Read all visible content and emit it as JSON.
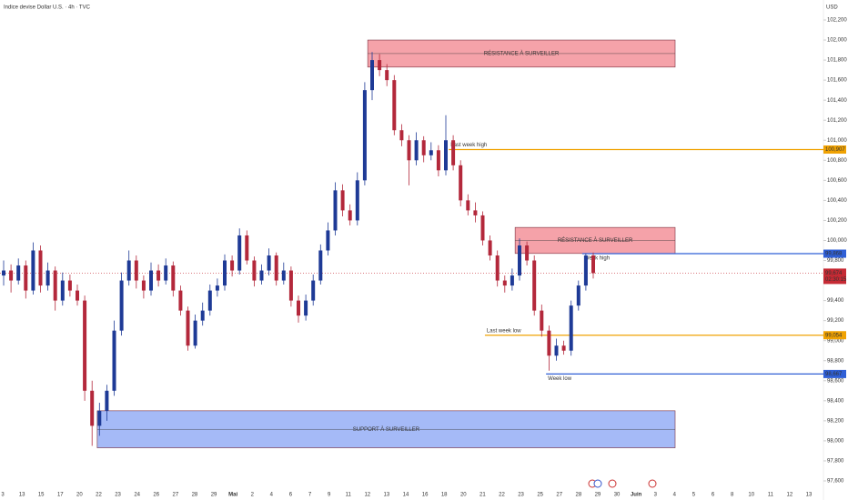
{
  "chart_data": {
    "type": "candlestick",
    "title": "Indice devise Dollar U.S. · 4h · TVC",
    "currency": "USD",
    "up_color": "#1e3a96",
    "down_color": "#b3283b",
    "ylim": [
      97600,
      102200
    ],
    "yticks": [
      {
        "value": 97600,
        "label": "97,600"
      },
      {
        "value": 97800,
        "label": "97,800"
      },
      {
        "value": 98000,
        "label": "98,000"
      },
      {
        "value": 98200,
        "label": "98,200"
      },
      {
        "value": 98400,
        "label": "98,400"
      },
      {
        "value": 98600,
        "label": "98,600"
      },
      {
        "value": 98800,
        "label": "98,800"
      },
      {
        "value": 99000,
        "label": "99,000"
      },
      {
        "value": 99200,
        "label": "99,200"
      },
      {
        "value": 99400,
        "label": "99,400"
      },
      {
        "value": 99600,
        "label": "99,600"
      },
      {
        "value": 99800,
        "label": "99,800"
      },
      {
        "value": 100000,
        "label": "100,000"
      },
      {
        "value": 100200,
        "label": "100,200"
      },
      {
        "value": 100400,
        "label": "100,400"
      },
      {
        "value": 100600,
        "label": "100,600"
      },
      {
        "value": 100800,
        "label": "100,800"
      },
      {
        "value": 101000,
        "label": "101,000"
      },
      {
        "value": 101200,
        "label": "101,200"
      },
      {
        "value": 101400,
        "label": "101,400"
      },
      {
        "value": 101600,
        "label": "101,600"
      },
      {
        "value": 101800,
        "label": "101,800"
      },
      {
        "value": 102000,
        "label": "102,000"
      },
      {
        "value": 102200,
        "label": "102,200"
      }
    ],
    "x_axis_labels": [
      "3",
      "13",
      "15",
      "17",
      "20",
      "22",
      "23",
      "24",
      "26",
      "27",
      "28",
      "29",
      "Mai",
      "2",
      "4",
      "6",
      "7",
      "9",
      "11",
      "12",
      "13",
      "14",
      "16",
      "18",
      "20",
      "21",
      "22",
      "23",
      "25",
      "27",
      "28",
      "29",
      "30",
      "Juin",
      "3",
      "4",
      "5",
      "6",
      "8",
      "10",
      "11",
      "12",
      "13"
    ],
    "candles": [
      [
        99650,
        99800,
        99550,
        99700
      ],
      [
        99700,
        99760,
        99480,
        99600
      ],
      [
        99600,
        99820,
        99560,
        99750
      ],
      [
        99750,
        99800,
        99420,
        99500
      ],
      [
        99500,
        99980,
        99460,
        99900
      ],
      [
        99900,
        99950,
        99480,
        99550
      ],
      [
        99550,
        99780,
        99500,
        99700
      ],
      [
        99700,
        99740,
        99300,
        99400
      ],
      [
        99400,
        99680,
        99350,
        99600
      ],
      [
        99600,
        99660,
        99440,
        99500
      ],
      [
        99500,
        99560,
        99350,
        99400
      ],
      [
        99400,
        99450,
        98400,
        98500
      ],
      [
        98500,
        98600,
        97950,
        98150
      ],
      [
        98150,
        98380,
        98050,
        98300
      ],
      [
        98300,
        98560,
        98200,
        98500
      ],
      [
        98500,
        99200,
        98450,
        99100
      ],
      [
        99100,
        99680,
        99050,
        99600
      ],
      [
        99600,
        99900,
        99550,
        99800
      ],
      [
        99800,
        99850,
        99520,
        99600
      ],
      [
        99600,
        99650,
        99420,
        99500
      ],
      [
        99500,
        99780,
        99450,
        99700
      ],
      [
        99700,
        99760,
        99540,
        99600
      ],
      [
        99600,
        99820,
        99560,
        99750
      ],
      [
        99750,
        99790,
        99440,
        99500
      ],
      [
        99500,
        99550,
        99250,
        99300
      ],
      [
        99300,
        99340,
        98900,
        98950
      ],
      [
        98950,
        99260,
        98920,
        99200
      ],
      [
        99200,
        99380,
        99150,
        99300
      ],
      [
        99300,
        99560,
        99250,
        99500
      ],
      [
        99500,
        99620,
        99440,
        99550
      ],
      [
        99550,
        99860,
        99500,
        99800
      ],
      [
        99800,
        99850,
        99640,
        99700
      ],
      [
        99700,
        100120,
        99660,
        100050
      ],
      [
        100050,
        100100,
        99760,
        99800
      ],
      [
        99800,
        99840,
        99540,
        99600
      ],
      [
        99600,
        99760,
        99560,
        99700
      ],
      [
        99700,
        99920,
        99650,
        99850
      ],
      [
        99850,
        99880,
        99550,
        99600
      ],
      [
        99600,
        99780,
        99560,
        99700
      ],
      [
        99700,
        99740,
        99340,
        99400
      ],
      [
        99400,
        99450,
        99180,
        99250
      ],
      [
        99250,
        99460,
        99200,
        99400
      ],
      [
        99400,
        99660,
        99350,
        99600
      ],
      [
        99600,
        99960,
        99560,
        99900
      ],
      [
        99900,
        100180,
        99850,
        100100
      ],
      [
        100100,
        100580,
        100050,
        100500
      ],
      [
        100500,
        100560,
        100240,
        100300
      ],
      [
        100300,
        100360,
        100150,
        100200
      ],
      [
        100200,
        100680,
        100150,
        100600
      ],
      [
        100600,
        101580,
        100550,
        101500
      ],
      [
        101500,
        101880,
        101400,
        101800
      ],
      [
        101800,
        101860,
        101640,
        101700
      ],
      [
        101700,
        101760,
        101540,
        101600
      ],
      [
        101600,
        101650,
        101050,
        101100
      ],
      [
        101100,
        101160,
        100940,
        101000
      ],
      [
        101000,
        101050,
        100550,
        100800
      ],
      [
        100800,
        101080,
        100750,
        101000
      ],
      [
        101000,
        101040,
        100780,
        100850
      ],
      [
        100850,
        100980,
        100800,
        100900
      ],
      [
        100900,
        100950,
        100640,
        100700
      ],
      [
        100700,
        101250,
        100650,
        101000
      ],
      [
        101000,
        101050,
        100700,
        100750
      ],
      [
        100750,
        100800,
        100340,
        100400
      ],
      [
        100400,
        100460,
        100250,
        100300
      ],
      [
        100300,
        100380,
        100180,
        100250
      ],
      [
        100250,
        100290,
        99950,
        100000
      ],
      [
        100000,
        100050,
        99800,
        99850
      ],
      [
        99850,
        99900,
        99540,
        99600
      ],
      [
        99600,
        99650,
        99480,
        99550
      ],
      [
        99550,
        99720,
        99500,
        99650
      ],
      [
        99650,
        100020,
        99600,
        99950
      ],
      [
        99950,
        99990,
        99750,
        99800
      ],
      [
        99800,
        99850,
        99250,
        99300
      ],
      [
        99300,
        99360,
        99040,
        99100
      ],
      [
        99100,
        99150,
        98700,
        98850
      ],
      [
        98850,
        99020,
        98800,
        98950
      ],
      [
        98950,
        99000,
        98860,
        98900
      ],
      [
        98900,
        99400,
        98850,
        99350
      ],
      [
        99350,
        99600,
        99300,
        99550
      ],
      [
        99550,
        99868,
        99500,
        99850
      ],
      [
        99850,
        99880,
        99620,
        99674
      ]
    ],
    "zones": [
      {
        "label": "RÉSISTANCE À SURVEILLER",
        "from": 101730,
        "to": 102000,
        "start": 49.4,
        "color": "#f28b94"
      },
      {
        "label": "RÉSISTANCE À SURVEILLER",
        "from": 99870,
        "to": 100130,
        "start": 69.4,
        "color": "#f28b94"
      },
      {
        "label": "SUPPORT À SURVEILLER",
        "from": 97930,
        "to": 98300,
        "start": 12.7,
        "color": "#8fa9f5"
      }
    ],
    "levels": [
      {
        "name": "Last week high",
        "value": 100907,
        "label": "100,907",
        "start": 60.4,
        "color": "#f0a202"
      },
      {
        "name": "Week high",
        "value": 99868,
        "label": "99,868",
        "start": 78.5,
        "color": "#2f5fd6"
      },
      {
        "name": "Last week low",
        "value": 99054,
        "label": "99,054",
        "start": 65.3,
        "color": "#f0a202"
      },
      {
        "name": "Week low",
        "value": 98667,
        "label": "98,667",
        "start": 73.6,
        "color": "#2f5fd6"
      }
    ],
    "last_price": {
      "value": 99674,
      "label": "99,674",
      "countdown": "02:30:15",
      "color": "#c62a34"
    }
  }
}
